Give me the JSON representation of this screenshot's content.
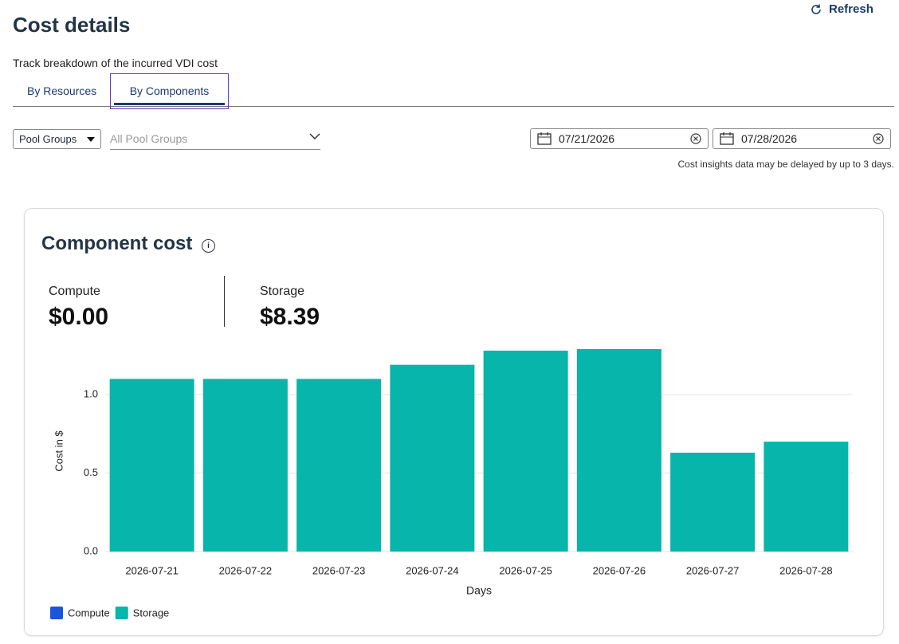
{
  "header": {
    "title": "Cost details",
    "subtitle": "Track breakdown of the incurred VDI cost",
    "refresh": "Refresh"
  },
  "tabs": [
    "By Resources",
    "By Components"
  ],
  "filters": {
    "pool_select": "Pool Groups",
    "pool_placeholder": "All Pool Groups",
    "date_from": "07/21/2026",
    "date_to": "07/28/2026",
    "delay_note": "Cost insights data may be delayed by up to 3 days."
  },
  "card": {
    "title": "Component cost",
    "summary": [
      {
        "label": "Compute",
        "value": "$0.00"
      },
      {
        "label": "Storage",
        "value": "$8.39"
      }
    ]
  },
  "chart_data": {
    "type": "bar",
    "stacked": true,
    "x_label": "Days",
    "y_label": "Cost in $",
    "categories": [
      "2026-07-21",
      "2026-07-22",
      "2026-07-23",
      "2026-07-24",
      "2026-07-25",
      "2026-07-26",
      "2026-07-27",
      "2026-07-28"
    ],
    "series": [
      {
        "name": "Compute",
        "color": "#1a56db",
        "values": [
          0,
          0,
          0,
          0,
          0,
          0,
          0,
          0
        ]
      },
      {
        "name": "Storage",
        "color": "#08b5aa",
        "values": [
          1.1,
          1.1,
          1.1,
          1.19,
          1.28,
          1.29,
          0.63,
          0.7
        ]
      }
    ],
    "ylim": [
      0,
      1.3
    ],
    "yticks": [
      {
        "value": 0,
        "label": "0.0"
      },
      0.5,
      {
        "value": 1,
        "label": "1.0"
      }
    ],
    "grid": true,
    "legend": "bottom-left"
  }
}
